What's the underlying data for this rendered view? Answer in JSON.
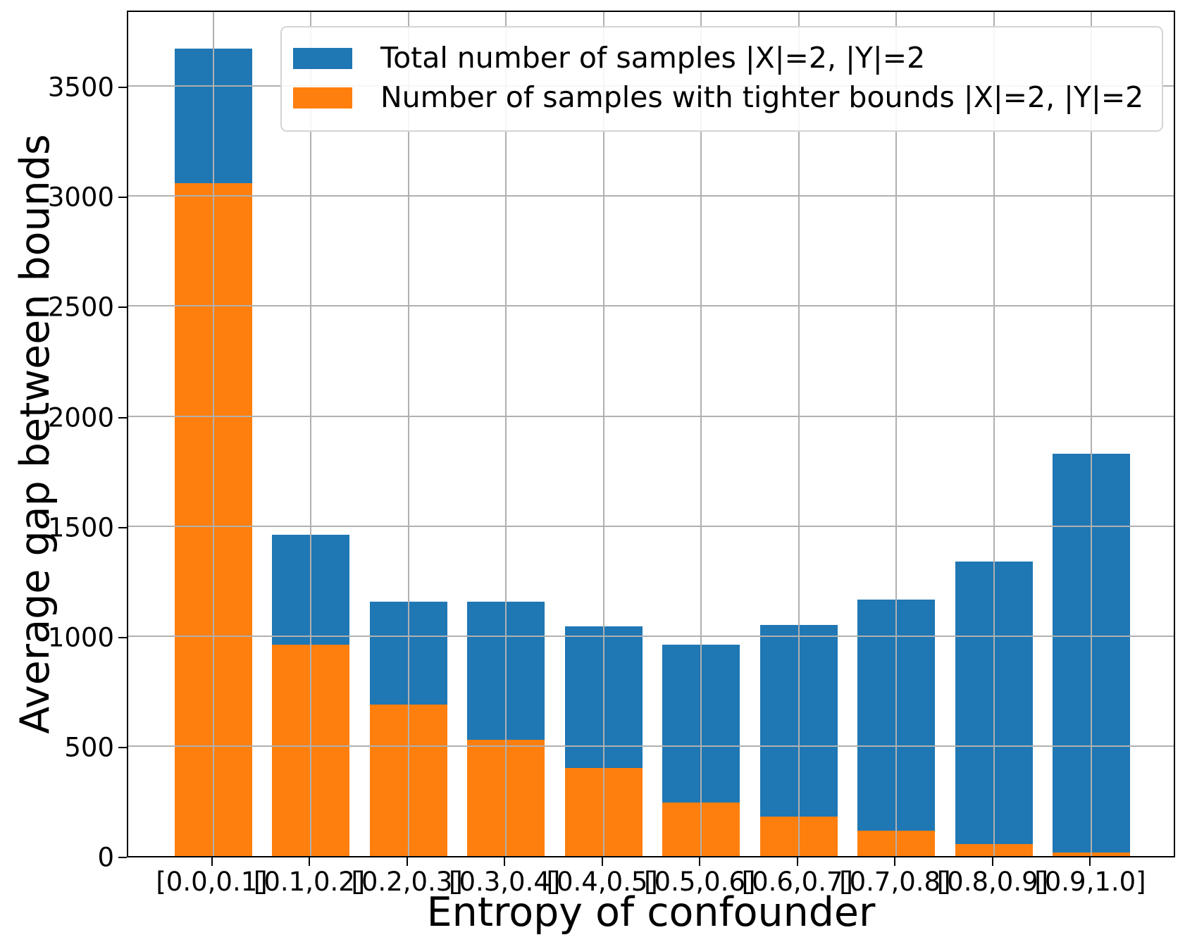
{
  "chart_data": {
    "type": "bar",
    "mode": "overlay-front-subset",
    "title": "",
    "xlabel": "Entropy of confounder",
    "ylabel": "Average gap between bounds",
    "categories": [
      "[0.0,0.1]",
      "[0.1,0.2]",
      "[0.2,0.3]",
      "[0.3,0.4]",
      "[0.4,0.5]",
      "[0.5,0.6]",
      "[0.6,0.7]",
      "[0.7,0.8]",
      "[0.8,0.9]",
      "[0.9,1.0]"
    ],
    "series": [
      {
        "name": "Total number of samples |X|=2, |Y|=2",
        "color": "#1f77b4",
        "values": [
          3670,
          1460,
          1155,
          1155,
          1045,
          960,
          1050,
          1165,
          1340,
          1830
        ]
      },
      {
        "name": "Number of samples with tighter bounds |X|=2, |Y|=2",
        "color": "#ff7f0e",
        "values": [
          3060,
          960,
          690,
          530,
          400,
          245,
          180,
          115,
          55,
          15
        ]
      }
    ],
    "ylim": [
      0,
      3850
    ],
    "yticks": [
      0,
      500,
      1000,
      1500,
      2000,
      2500,
      3000,
      3500
    ],
    "grid": true,
    "grid_color": "#b0b0b0",
    "grid_above_bars": true,
    "legend_position": "upper right",
    "spine_color": "#000000"
  }
}
